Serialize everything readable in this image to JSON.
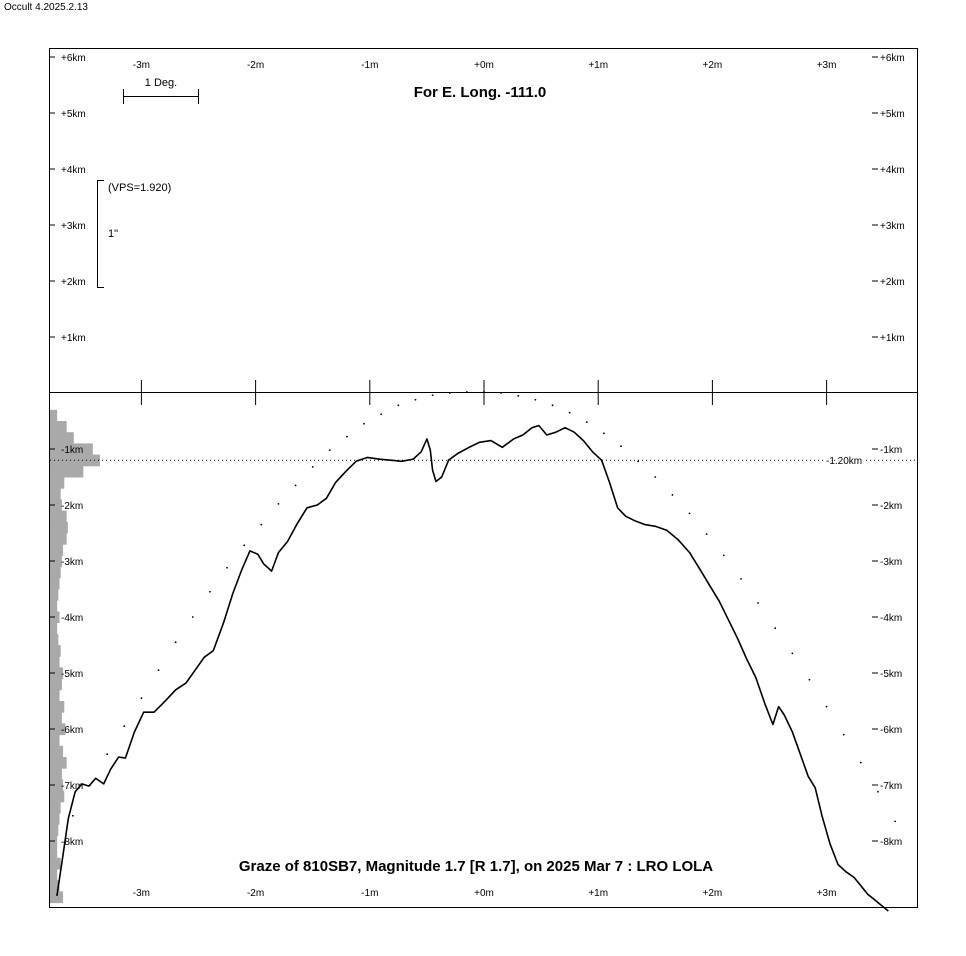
{
  "app_version": "Occult 4.2025.2.13",
  "chart_data": {
    "type": "line",
    "title": "Graze of  810SB7,  Magnitude 1.7 [R 1.7],  on 2025 Mar  7  :  LRO LOLA",
    "subtitle": "For E. Long. -111.0",
    "scale_bar_label": "1 Deg.",
    "vps_label": "(VPS=1.920)",
    "arcsec_label": "1\"",
    "x_unit": "m",
    "y_unit": "km",
    "x_ticks": [
      "-3m",
      "-2m",
      "-1m",
      "+0m",
      "+1m",
      "+2m",
      "+3m"
    ],
    "x_tick_values": [
      -3,
      -2,
      -1,
      0,
      1,
      2,
      3
    ],
    "xlim": [
      -3.8,
      3.8
    ],
    "ylim": [
      -9.15,
      6.2
    ],
    "upper_y_ticks": [
      "+6km",
      "+5km",
      "+4km",
      "+3km",
      "+2km",
      "+1km"
    ],
    "upper_y_tick_values": [
      6,
      5,
      4,
      3,
      2,
      1
    ],
    "lower_y_ticks": [
      "-1km",
      "-2km",
      "-3km",
      "-4km",
      "-5km",
      "-6km",
      "-7km",
      "-8km"
    ],
    "lower_y_tick_values": [
      -1,
      -2,
      -3,
      -4,
      -5,
      -6,
      -7,
      -8
    ],
    "reference_line": {
      "label": "-1.20km",
      "value": -1.2
    },
    "series": [
      {
        "style": "solid",
        "x": [
          -3.74,
          -3.69,
          -3.64,
          -3.58,
          -3.52,
          -3.46,
          -3.4,
          -3.33,
          -3.27,
          -3.2,
          -3.14,
          -3.06,
          -2.98,
          -2.89,
          -2.8,
          -2.7,
          -2.61,
          -2.53,
          -2.45,
          -2.37,
          -2.28,
          -2.2,
          -2.12,
          -2.05,
          -1.98,
          -1.93,
          -1.86,
          -1.8,
          -1.72,
          -1.64,
          -1.55,
          -1.46,
          -1.38,
          -1.3,
          -1.21,
          -1.12,
          -1.02,
          -0.92,
          -0.82,
          -0.72,
          -0.62,
          -0.55,
          -0.5,
          -0.47,
          -0.45,
          -0.42,
          -0.37,
          -0.31,
          -0.23,
          -0.14,
          -0.04,
          0.06,
          0.16,
          0.26,
          0.34,
          0.42,
          0.48,
          0.55,
          0.63,
          0.71,
          0.79,
          0.87,
          0.95,
          1.03,
          1.1,
          1.17,
          1.24,
          1.32,
          1.41,
          1.5,
          1.6,
          1.7,
          1.8,
          1.9,
          1.98,
          2.06,
          2.14,
          2.22,
          2.3,
          2.38,
          2.46,
          2.53,
          2.58,
          2.63,
          2.7,
          2.77,
          2.84,
          2.9,
          2.96,
          3.03,
          3.1,
          3.17,
          3.24,
          3.3,
          3.36,
          3.42,
          3.48,
          3.54
        ],
        "y": [
          -8.98,
          -8.3,
          -7.6,
          -7.12,
          -6.98,
          -7.02,
          -6.88,
          -6.98,
          -6.72,
          -6.5,
          -6.52,
          -6.05,
          -5.7,
          -5.7,
          -5.52,
          -5.3,
          -5.18,
          -4.95,
          -4.72,
          -4.6,
          -4.1,
          -3.58,
          -3.15,
          -2.82,
          -2.88,
          -3.05,
          -3.18,
          -2.85,
          -2.65,
          -2.35,
          -2.05,
          -2.0,
          -1.88,
          -1.6,
          -1.4,
          -1.22,
          -1.15,
          -1.18,
          -1.2,
          -1.22,
          -1.18,
          -1.05,
          -0.82,
          -1.02,
          -1.38,
          -1.58,
          -1.5,
          -1.2,
          -1.08,
          -0.98,
          -0.88,
          -0.85,
          -0.97,
          -0.82,
          -0.75,
          -0.62,
          -0.58,
          -0.75,
          -0.7,
          -0.62,
          -0.7,
          -0.85,
          -1.05,
          -1.2,
          -1.6,
          -2.05,
          -2.2,
          -2.28,
          -2.35,
          -2.38,
          -2.45,
          -2.62,
          -2.85,
          -3.18,
          -3.45,
          -3.72,
          -4.05,
          -4.38,
          -4.75,
          -5.08,
          -5.55,
          -5.92,
          -5.6,
          -5.75,
          -6.05,
          -6.45,
          -6.85,
          -7.05,
          -7.55,
          -8.05,
          -8.42,
          -8.55,
          -8.65,
          -8.8,
          -8.95,
          -9.05,
          -9.15,
          -9.25
        ]
      },
      {
        "style": "dotted",
        "x": [
          -3.6,
          -3.45,
          -3.3,
          -3.15,
          -3.0,
          -2.85,
          -2.7,
          -2.55,
          -2.4,
          -2.25,
          -2.1,
          -1.95,
          -1.8,
          -1.65,
          -1.5,
          -1.35,
          -1.2,
          -1.05,
          -0.9,
          -0.75,
          -0.6,
          -0.45,
          -0.3,
          -0.15,
          0.0,
          0.15,
          0.3,
          0.45,
          0.6,
          0.75,
          0.9,
          1.05,
          1.2,
          1.35,
          1.5,
          1.65,
          1.8,
          1.95,
          2.1,
          2.25,
          2.4,
          2.55,
          2.7,
          2.85,
          3.0,
          3.15,
          3.3,
          3.45,
          3.6
        ],
        "y": [
          -7.55,
          -7.0,
          -6.45,
          -5.95,
          -5.45,
          -4.95,
          -4.45,
          -4.0,
          -3.55,
          -3.12,
          -2.72,
          -2.35,
          -1.98,
          -1.65,
          -1.32,
          -1.02,
          -0.78,
          -0.55,
          -0.38,
          -0.22,
          -0.12,
          -0.04,
          0.0,
          0.02,
          0.02,
          0.0,
          -0.05,
          -0.12,
          -0.22,
          -0.35,
          -0.52,
          -0.72,
          -0.95,
          -1.22,
          -1.5,
          -1.82,
          -2.15,
          -2.52,
          -2.9,
          -3.32,
          -3.75,
          -4.2,
          -4.65,
          -5.12,
          -5.6,
          -6.1,
          -6.6,
          -7.12,
          -7.65
        ]
      }
    ],
    "histogram": {
      "y": [
        -0.4,
        -0.6,
        -0.8,
        -1.0,
        -1.2,
        -1.4,
        -1.6,
        -1.8,
        -2.0,
        -2.2,
        -2.4,
        -2.6,
        -2.8,
        -3.0,
        -3.2,
        -3.4,
        -3.6,
        -3.8,
        -4.0,
        -4.2,
        -4.4,
        -4.6,
        -4.8,
        -5.0,
        -5.2,
        -5.4,
        -5.6,
        -5.8,
        -6.0,
        -6.2,
        -6.4,
        -6.6,
        -6.8,
        -7.0,
        -7.2,
        -7.4,
        -7.6,
        -7.8,
        -8.0,
        -8.2,
        -8.4,
        -8.6,
        -8.8,
        -9.0
      ],
      "values": [
        0.06,
        0.14,
        0.2,
        0.36,
        0.42,
        0.28,
        0.12,
        0.09,
        0.1,
        0.14,
        0.15,
        0.14,
        0.11,
        0.1,
        0.09,
        0.08,
        0.07,
        0.06,
        0.08,
        0.06,
        0.07,
        0.09,
        0.08,
        0.11,
        0.1,
        0.08,
        0.12,
        0.1,
        0.13,
        0.08,
        0.11,
        0.14,
        0.1,
        0.11,
        0.12,
        0.09,
        0.08,
        0.07,
        0.06,
        0.06,
        0.09,
        0.06,
        0.08,
        0.11
      ]
    }
  }
}
